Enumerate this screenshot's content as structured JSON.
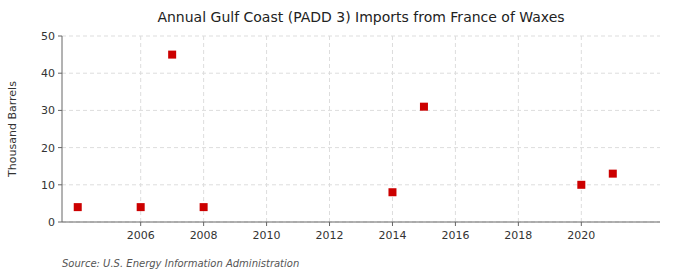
{
  "chart_data": {
    "type": "scatter",
    "title": "Annual Gulf Coast (PADD 3) Imports from France of Waxes",
    "ylabel": "Thousand Barrels",
    "annotations": [
      "Source: U.S. Energy Information Administration"
    ],
    "x": [
      2004,
      2006,
      2007,
      2008,
      2014,
      2015,
      2020,
      2021
    ],
    "y": [
      4,
      4,
      45,
      4,
      8,
      31,
      10,
      13
    ],
    "color": "#cc0000",
    "marker": "square",
    "xlim": [
      2003.5,
      2022.5
    ],
    "ylim": [
      0,
      50
    ],
    "xticks": [
      2006,
      2008,
      2010,
      2012,
      2014,
      2016,
      2018,
      2020
    ],
    "yticks": [
      0,
      10,
      20,
      30,
      40,
      50
    ],
    "grid": true
  }
}
